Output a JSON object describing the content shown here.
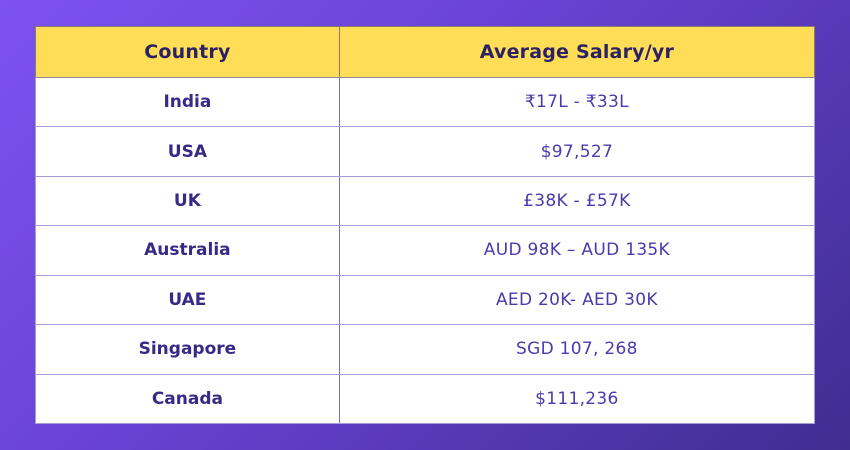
{
  "chart_data": {
    "type": "table",
    "columns": [
      "Country",
      "Average Salary/yr"
    ],
    "rows": [
      [
        "India",
        "₹17L - ₹33L"
      ],
      [
        "USA",
        "$97,527"
      ],
      [
        "UK",
        "£38K - £57K"
      ],
      [
        "Australia",
        "AUD 98K – AUD 135K"
      ],
      [
        "UAE",
        "AED 20K- AED 30K"
      ],
      [
        "Singapore",
        "SGD 107, 268"
      ],
      [
        "Canada",
        "$111,236"
      ]
    ],
    "title": "",
    "legend": "none",
    "grid": "on"
  },
  "colors": {
    "background_gradient_start": "#7d52f0",
    "background_gradient_end": "#3f2d90",
    "header_background": "#ffdd56",
    "header_text": "#2b2263",
    "country_text": "#372a87",
    "salary_text": "#4c3aad",
    "cell_background": "#ffffff",
    "row_border": "#a79cd6"
  }
}
